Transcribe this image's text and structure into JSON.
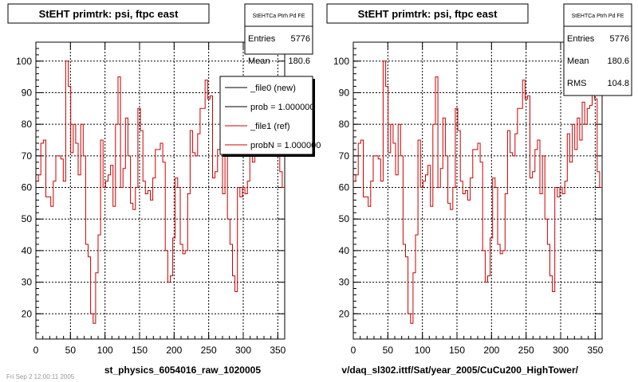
{
  "chart_data": [
    {
      "type": "line",
      "title": "StEHT primtrk: psi, ftpc east",
      "xlabel": "st_physics_6054016_raw_1020005",
      "xlim": [
        0,
        360
      ],
      "ylim": [
        12,
        106
      ],
      "x_ticks": [
        0,
        50,
        100,
        150,
        200,
        250,
        300,
        350
      ],
      "y_ticks": [
        20,
        30,
        40,
        50,
        60,
        70,
        80,
        90,
        100
      ],
      "grid": true,
      "stats": {
        "name": "StEHTCa Ptrh Pd FE",
        "rows": [
          {
            "label": "Entries",
            "value": "5776"
          },
          {
            "label": "Mean",
            "value": "180.6"
          }
        ]
      },
      "legend": {
        "placement": "right",
        "entries": [
          {
            "label": "_file0 (new)",
            "color": "#000000"
          },
          {
            "label": "prob = 1.000000",
            "color": "#000000"
          },
          {
            "label": "_file1 (ref)",
            "color": "#cc0000"
          },
          {
            "label": "probN = 1.000000",
            "color": "#cc0000"
          }
        ]
      },
      "series": [
        {
          "color": "#cc0000",
          "bin_width": 3.6,
          "x_start": 0,
          "values": [
            62,
            64,
            74,
            75,
            57,
            57,
            54,
            62,
            70,
            70,
            69,
            62,
            100,
            92,
            71,
            80,
            74,
            64,
            80,
            70,
            42,
            38,
            20,
            17,
            33,
            45,
            75,
            60,
            62,
            64,
            67,
            54,
            80,
            95,
            60,
            66,
            82,
            70,
            55,
            53,
            60,
            85,
            78,
            62,
            58,
            59,
            56,
            63,
            72,
            72,
            74,
            68,
            40,
            30,
            32,
            44,
            63,
            60,
            42,
            39,
            40,
            58,
            78,
            71,
            70,
            77,
            85,
            85,
            94,
            88,
            89,
            63,
            65,
            72,
            75,
            58,
            70,
            50,
            42,
            32,
            27,
            60,
            57,
            60,
            58,
            62,
            77,
            68,
            80,
            72,
            82,
            75,
            87,
            80,
            85,
            86,
            91,
            88,
            65,
            60
          ]
        }
      ]
    },
    {
      "type": "line",
      "title": "StEHT primtrk: psi, ftpc east",
      "xlabel": "v/daq_sl302.ittf/Sat/year_2005/CuCu200_HighTower/",
      "xlim": [
        0,
        360
      ],
      "ylim": [
        12,
        106
      ],
      "x_ticks": [
        0,
        50,
        100,
        150,
        200,
        250,
        300,
        350
      ],
      "y_ticks": [
        20,
        30,
        40,
        50,
        60,
        70,
        80,
        90,
        100
      ],
      "grid": true,
      "stats": {
        "name": "StEHTCa Ptrh Pd FE",
        "rows": [
          {
            "label": "Entries",
            "value": "5776"
          },
          {
            "label": "Mean",
            "value": "180.6"
          },
          {
            "label": "RMS",
            "value": "104.8"
          }
        ]
      },
      "series": [
        {
          "color": "#cc0000",
          "bin_width": 3.6,
          "x_start": 0,
          "values": [
            62,
            64,
            74,
            75,
            57,
            57,
            54,
            62,
            70,
            70,
            69,
            62,
            100,
            92,
            71,
            80,
            74,
            64,
            80,
            70,
            42,
            38,
            20,
            17,
            33,
            45,
            75,
            60,
            62,
            64,
            67,
            54,
            80,
            95,
            60,
            66,
            82,
            70,
            55,
            53,
            60,
            85,
            78,
            62,
            58,
            59,
            56,
            63,
            72,
            72,
            74,
            68,
            40,
            30,
            32,
            44,
            63,
            60,
            42,
            39,
            40,
            58,
            78,
            71,
            70,
            77,
            85,
            85,
            94,
            88,
            89,
            63,
            65,
            72,
            75,
            58,
            70,
            50,
            42,
            32,
            27,
            60,
            57,
            60,
            58,
            62,
            77,
            68,
            80,
            72,
            82,
            75,
            87,
            80,
            85,
            86,
            91,
            88,
            65,
            60
          ]
        }
      ]
    }
  ],
  "footer": {
    "timestamp": "Fri Sep 2 12:00:11 2005"
  }
}
